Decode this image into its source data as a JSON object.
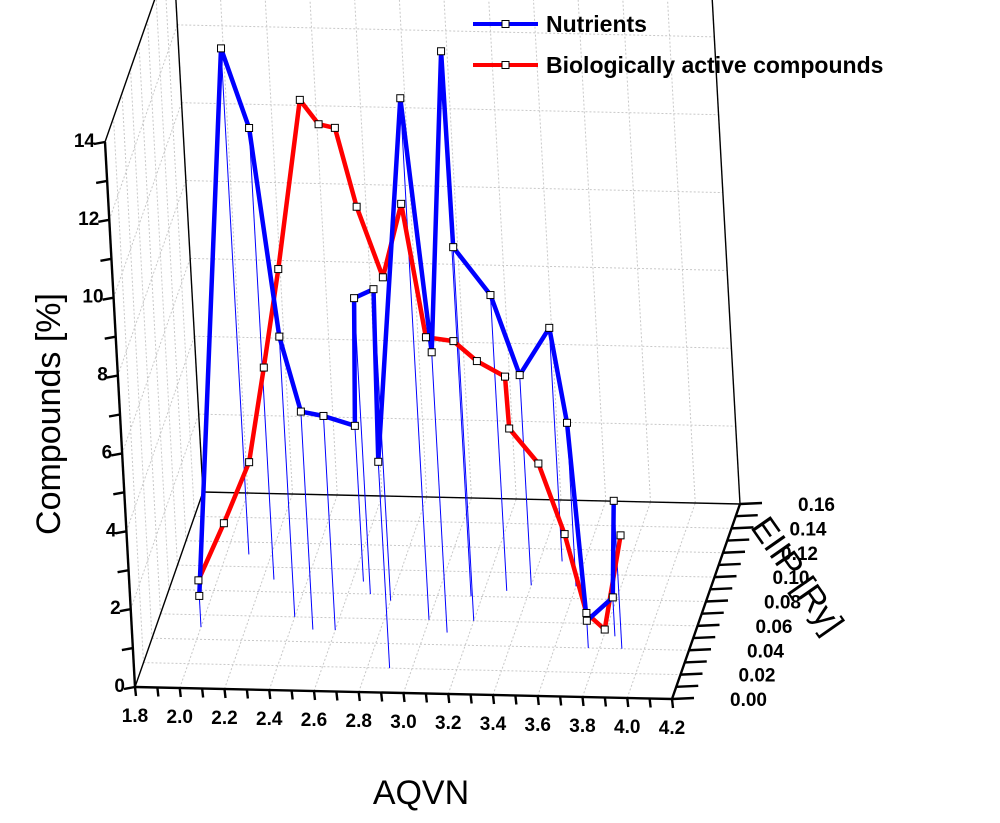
{
  "chart_data": {
    "type": "line",
    "subtype": "3d",
    "title": "",
    "xlabel": "AQVN",
    "ylabel": "EIIP [Ry]",
    "zlabel": "Compounds [%]",
    "x_ticks": [
      "1.8",
      "2.0",
      "2.2",
      "2.4",
      "2.6",
      "2.8",
      "3.0",
      "3.2",
      "3.4",
      "3.6",
      "3.8",
      "4.0",
      "4.2"
    ],
    "y_ticks": [
      "0.00",
      "0.02",
      "0.04",
      "0.06",
      "0.08",
      "0.10",
      "0.12",
      "0.14",
      "0.16"
    ],
    "z_ticks": [
      "0",
      "2",
      "4",
      "6",
      "8",
      "10",
      "12",
      "14"
    ],
    "xlim": [
      1.8,
      4.2
    ],
    "ylim": [
      0.0,
      0.16
    ],
    "zlim": [
      0,
      14
    ],
    "grid": true,
    "legend_position": "top-right",
    "series": [
      {
        "name": "Nutrients",
        "color": "#0000ff",
        "drop_lines": true,
        "points": [
          {
            "x": 2.0,
            "y": 0.05,
            "z": 0.8
          },
          {
            "x": 2.1,
            "y": 0.11,
            "z": 13.0
          },
          {
            "x": 2.25,
            "y": 0.09,
            "z": 11.6
          },
          {
            "x": 2.4,
            "y": 0.06,
            "z": 7.2
          },
          {
            "x": 2.5,
            "y": 0.05,
            "z": 5.6
          },
          {
            "x": 2.6,
            "y": 0.05,
            "z": 5.5
          },
          {
            "x": 2.65,
            "y": 0.09,
            "z": 4.0
          },
          {
            "x": 2.7,
            "y": 0.08,
            "z": 7.6
          },
          {
            "x": 2.8,
            "y": 0.075,
            "z": 8.0
          },
          {
            "x": 2.9,
            "y": 0.02,
            "z": 5.3
          },
          {
            "x": 3.0,
            "y": 0.06,
            "z": 13.4
          },
          {
            "x": 3.1,
            "y": 0.05,
            "z": 7.2
          },
          {
            "x": 3.15,
            "y": 0.08,
            "z": 14.0
          },
          {
            "x": 3.2,
            "y": 0.06,
            "z": 9.6
          },
          {
            "x": 3.3,
            "y": 0.085,
            "z": 7.6
          },
          {
            "x": 3.4,
            "y": 0.09,
            "z": 5.4
          },
          {
            "x": 3.5,
            "y": 0.11,
            "z": 6.0
          },
          {
            "x": 3.6,
            "y": 0.09,
            "z": 4.2
          },
          {
            "x": 3.75,
            "y": 0.04,
            "z": 0.7
          },
          {
            "x": 3.85,
            "y": 0.05,
            "z": 1.0
          },
          {
            "x": 3.9,
            "y": 0.04,
            "z": 3.8
          }
        ]
      },
      {
        "name": "Biologically active compounds",
        "color": "#ff0000",
        "drop_lines": false,
        "points": [
          {
            "x": 2.0,
            "y": 0.05,
            "z": 1.2
          },
          {
            "x": 2.15,
            "y": 0.04,
            "z": 3.0
          },
          {
            "x": 2.3,
            "y": 0.03,
            "z": 4.9
          },
          {
            "x": 2.4,
            "y": 0.025,
            "z": 7.5
          },
          {
            "x": 2.5,
            "y": 0.02,
            "z": 10.2
          },
          {
            "x": 2.55,
            "y": 0.06,
            "z": 13.3
          },
          {
            "x": 2.65,
            "y": 0.05,
            "z": 13.0
          },
          {
            "x": 2.7,
            "y": 0.06,
            "z": 12.6
          },
          {
            "x": 2.8,
            "y": 0.05,
            "z": 10.9
          },
          {
            "x": 2.9,
            "y": 0.05,
            "z": 9.1
          },
          {
            "x": 3.0,
            "y": 0.05,
            "z": 11.0
          },
          {
            "x": 3.1,
            "y": 0.04,
            "z": 7.9
          },
          {
            "x": 3.2,
            "y": 0.05,
            "z": 7.5
          },
          {
            "x": 3.3,
            "y": 0.05,
            "z": 7.0
          },
          {
            "x": 3.4,
            "y": 0.06,
            "z": 6.3
          },
          {
            "x": 3.45,
            "y": 0.04,
            "z": 5.6
          },
          {
            "x": 3.55,
            "y": 0.05,
            "z": 4.4
          },
          {
            "x": 3.65,
            "y": 0.05,
            "z": 2.6
          },
          {
            "x": 3.75,
            "y": 0.04,
            "z": 0.9
          },
          {
            "x": 3.85,
            "y": 0.03,
            "z": 0.8
          },
          {
            "x": 3.9,
            "y": 0.05,
            "z": 2.6
          }
        ]
      }
    ]
  }
}
